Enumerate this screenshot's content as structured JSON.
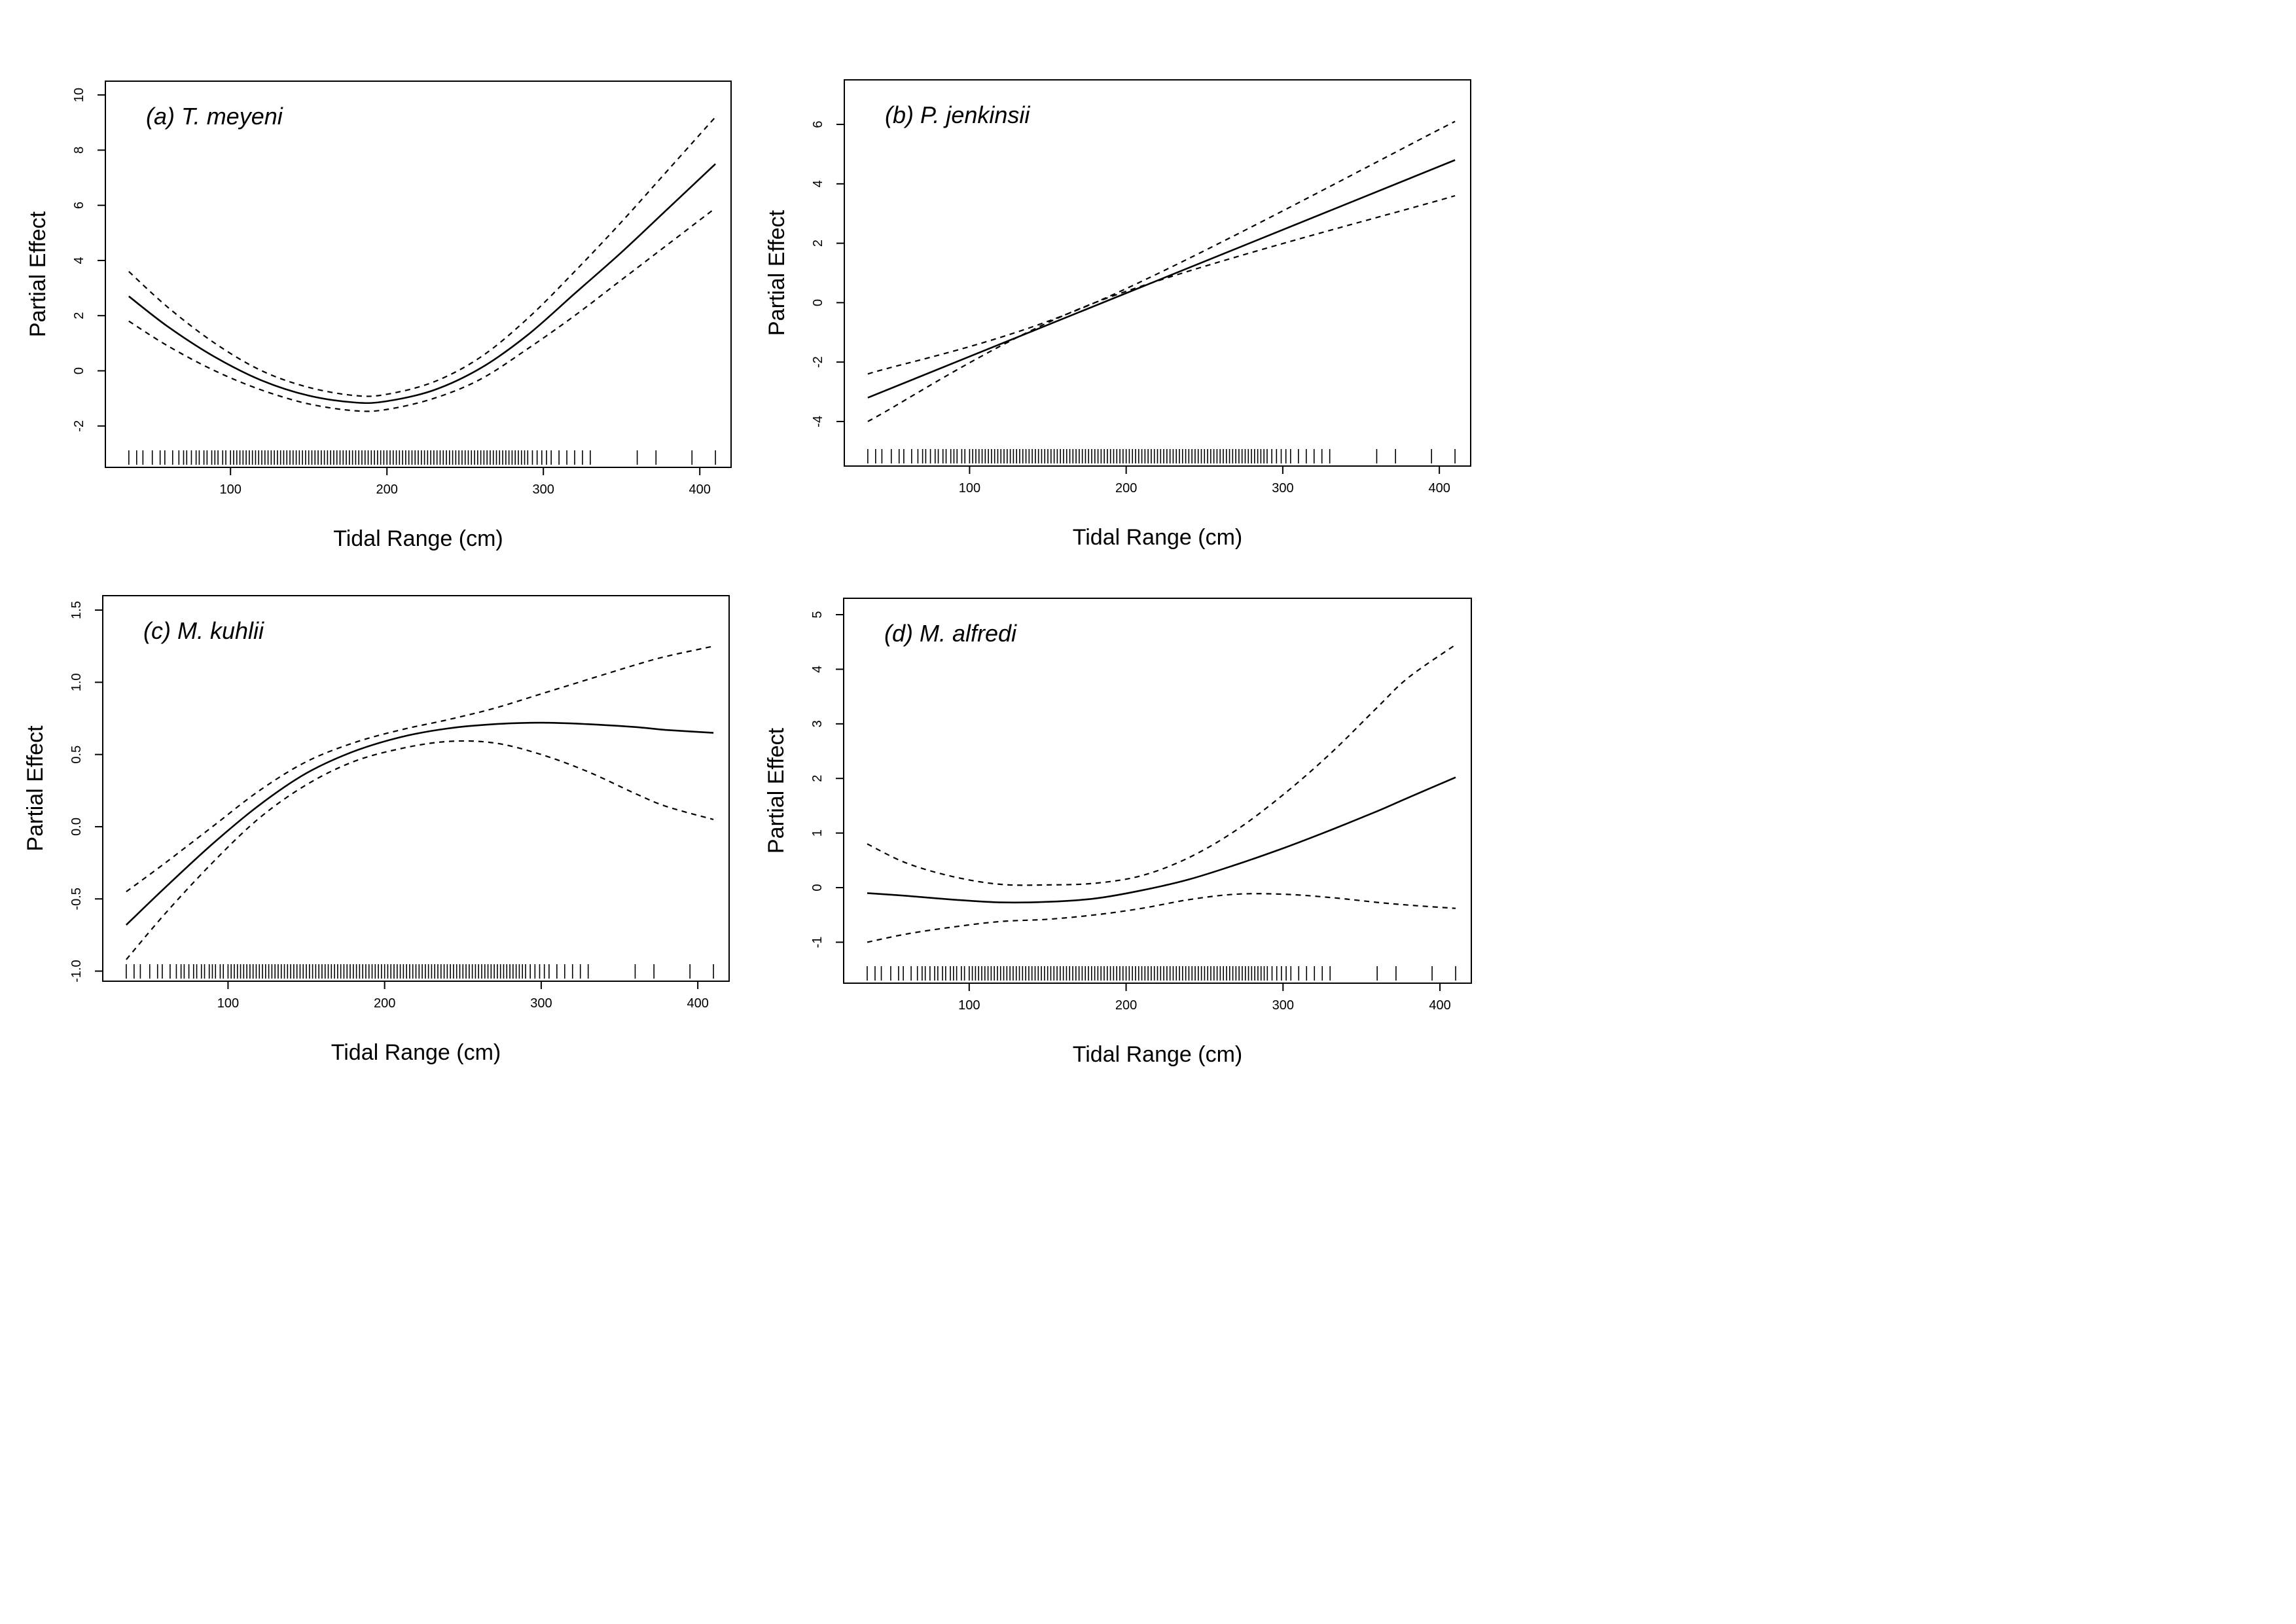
{
  "chart_data": [
    {
      "type": "line",
      "title": "(a) T. meyeni",
      "xlabel": "Tidal Range (cm)",
      "ylabel": "Partial Effect",
      "xlim": [
        20,
        420
      ],
      "ylim": [
        -3.5,
        10.5
      ],
      "xticks": [
        "100",
        "200",
        "300",
        "400"
      ],
      "yticks": [
        "-2",
        "0",
        "2",
        "4",
        "6",
        "8",
        "10"
      ],
      "grid": false,
      "series": [
        {
          "role": "fit",
          "style": "solid",
          "x": [
            35,
            60,
            90,
            120,
            150,
            180,
            200,
            230,
            260,
            290,
            320,
            350,
            380,
            410
          ],
          "y": [
            2.7,
            1.6,
            0.5,
            -0.35,
            -0.9,
            -1.15,
            -1.1,
            -0.7,
            0.1,
            1.3,
            2.8,
            4.3,
            5.9,
            7.5
          ]
        },
        {
          "role": "upper",
          "style": "dashed",
          "x": [
            35,
            60,
            90,
            120,
            150,
            180,
            200,
            230,
            260,
            290,
            320,
            350,
            380,
            410
          ],
          "y": [
            3.6,
            2.3,
            1.0,
            0.0,
            -0.6,
            -0.9,
            -0.85,
            -0.4,
            0.5,
            1.9,
            3.6,
            5.4,
            7.3,
            9.2
          ]
        },
        {
          "role": "lower",
          "style": "dashed",
          "x": [
            35,
            60,
            90,
            120,
            150,
            180,
            200,
            230,
            260,
            290,
            320,
            350,
            380,
            410
          ],
          "y": [
            1.8,
            0.9,
            0.0,
            -0.7,
            -1.2,
            -1.45,
            -1.4,
            -1.0,
            -0.3,
            0.8,
            2.0,
            3.3,
            4.6,
            5.9
          ]
        }
      ],
      "rug": [
        35,
        40,
        44,
        50,
        55,
        58,
        63,
        67,
        70,
        72,
        75,
        78,
        80,
        83,
        85,
        88,
        90,
        92,
        95,
        97,
        100,
        102,
        104,
        106,
        108,
        110,
        112,
        114,
        116,
        118,
        120,
        122,
        124,
        126,
        128,
        130,
        132,
        134,
        136,
        138,
        140,
        142,
        144,
        146,
        148,
        150,
        152,
        154,
        156,
        158,
        160,
        162,
        164,
        166,
        168,
        170,
        172,
        174,
        176,
        178,
        180,
        182,
        184,
        186,
        188,
        190,
        192,
        194,
        196,
        198,
        200,
        202,
        204,
        206,
        208,
        210,
        212,
        214,
        216,
        218,
        220,
        222,
        224,
        226,
        228,
        230,
        232,
        234,
        236,
        238,
        240,
        242,
        244,
        246,
        248,
        250,
        252,
        254,
        256,
        258,
        260,
        262,
        264,
        266,
        268,
        270,
        272,
        274,
        276,
        278,
        280,
        282,
        284,
        286,
        288,
        290,
        293,
        296,
        299,
        302,
        305,
        310,
        315,
        320,
        325,
        330,
        360,
        372,
        395,
        410
      ]
    },
    {
      "type": "line",
      "title": "(b) P. jenkinsii",
      "xlabel": "Tidal Range (cm)",
      "ylabel": "Partial Effect",
      "xlim": [
        20,
        420
      ],
      "ylim": [
        -5.5,
        7.5
      ],
      "xticks": [
        "100",
        "200",
        "300",
        "400"
      ],
      "yticks": [
        "-4",
        "-2",
        "0",
        "2",
        "4",
        "6"
      ],
      "grid": false,
      "series": [
        {
          "role": "fit",
          "style": "solid",
          "x": [
            35,
            410
          ],
          "y": [
            -3.2,
            4.8
          ]
        },
        {
          "role": "upper",
          "style": "dashed",
          "x": [
            35,
            180,
            410
          ],
          "y": [
            -2.4,
            0.0,
            6.1
          ]
        },
        {
          "role": "lower",
          "style": "dashed",
          "x": [
            35,
            180,
            410
          ],
          "y": [
            -4.0,
            0.0,
            3.6
          ]
        }
      ],
      "rug": [
        35,
        40,
        44,
        50,
        55,
        58,
        63,
        67,
        70,
        72,
        75,
        78,
        80,
        83,
        85,
        88,
        90,
        92,
        95,
        97,
        100,
        102,
        104,
        106,
        108,
        110,
        112,
        114,
        116,
        118,
        120,
        122,
        124,
        126,
        128,
        130,
        132,
        134,
        136,
        138,
        140,
        142,
        144,
        146,
        148,
        150,
        152,
        154,
        156,
        158,
        160,
        162,
        164,
        166,
        168,
        170,
        172,
        174,
        176,
        178,
        180,
        182,
        184,
        186,
        188,
        190,
        192,
        194,
        196,
        198,
        200,
        202,
        204,
        206,
        208,
        210,
        212,
        214,
        216,
        218,
        220,
        222,
        224,
        226,
        228,
        230,
        232,
        234,
        236,
        238,
        240,
        242,
        244,
        246,
        248,
        250,
        252,
        254,
        256,
        258,
        260,
        262,
        264,
        266,
        268,
        270,
        272,
        274,
        276,
        278,
        280,
        282,
        284,
        286,
        288,
        290,
        293,
        296,
        299,
        302,
        305,
        310,
        315,
        320,
        325,
        330,
        360,
        372,
        395,
        410
      ]
    },
    {
      "type": "line",
      "title": "(c) M. kuhlii",
      "xlabel": "Tidal Range (cm)",
      "ylabel": "Partial Effect",
      "xlim": [
        20,
        420
      ],
      "ylim": [
        -1.07,
        1.6
      ],
      "xticks": [
        "100",
        "200",
        "300",
        "400"
      ],
      "yticks": [
        "-1.0",
        "-0.5",
        "0.0",
        "0.5",
        "1.0",
        "1.5"
      ],
      "grid": false,
      "series": [
        {
          "role": "fit",
          "style": "solid",
          "x": [
            35,
            60,
            90,
            120,
            150,
            180,
            210,
            240,
            270,
            300,
            330,
            360,
            380,
            410
          ],
          "y": [
            -0.68,
            -0.42,
            -0.12,
            0.15,
            0.37,
            0.52,
            0.62,
            0.68,
            0.71,
            0.72,
            0.71,
            0.69,
            0.67,
            0.65
          ]
        },
        {
          "role": "upper",
          "style": "dashed",
          "x": [
            35,
            60,
            90,
            120,
            150,
            180,
            210,
            240,
            270,
            300,
            330,
            360,
            380,
            410
          ],
          "y": [
            -0.45,
            -0.25,
            0.0,
            0.25,
            0.45,
            0.58,
            0.67,
            0.74,
            0.82,
            0.92,
            1.02,
            1.12,
            1.18,
            1.25
          ]
        },
        {
          "role": "lower",
          "style": "dashed",
          "x": [
            35,
            60,
            90,
            120,
            150,
            180,
            210,
            240,
            270,
            300,
            330,
            360,
            380,
            410
          ],
          "y": [
            -0.92,
            -0.6,
            -0.25,
            0.06,
            0.29,
            0.45,
            0.54,
            0.59,
            0.58,
            0.5,
            0.38,
            0.23,
            0.14,
            0.05
          ]
        }
      ],
      "rug": [
        35,
        40,
        44,
        50,
        55,
        58,
        63,
        67,
        70,
        72,
        75,
        78,
        80,
        83,
        85,
        88,
        90,
        92,
        95,
        97,
        100,
        102,
        104,
        106,
        108,
        110,
        112,
        114,
        116,
        118,
        120,
        122,
        124,
        126,
        128,
        130,
        132,
        134,
        136,
        138,
        140,
        142,
        144,
        146,
        148,
        150,
        152,
        154,
        156,
        158,
        160,
        162,
        164,
        166,
        168,
        170,
        172,
        174,
        176,
        178,
        180,
        182,
        184,
        186,
        188,
        190,
        192,
        194,
        196,
        198,
        200,
        202,
        204,
        206,
        208,
        210,
        212,
        214,
        216,
        218,
        220,
        222,
        224,
        226,
        228,
        230,
        232,
        234,
        236,
        238,
        240,
        242,
        244,
        246,
        248,
        250,
        252,
        254,
        256,
        258,
        260,
        262,
        264,
        266,
        268,
        270,
        272,
        274,
        276,
        278,
        280,
        282,
        284,
        286,
        288,
        290,
        293,
        296,
        299,
        302,
        305,
        310,
        315,
        320,
        325,
        330,
        360,
        372,
        395,
        410
      ]
    },
    {
      "type": "line",
      "title": "(d) M. alfredi",
      "xlabel": "Tidal Range (cm)",
      "ylabel": "Partial Effect",
      "xlim": [
        20,
        420
      ],
      "ylim": [
        -1.75,
        5.3
      ],
      "xticks": [
        "100",
        "200",
        "300",
        "400"
      ],
      "yticks": [
        "-1",
        "0",
        "1",
        "2",
        "3",
        "4",
        "5"
      ],
      "grid": false,
      "series": [
        {
          "role": "fit",
          "style": "solid",
          "x": [
            35,
            60,
            90,
            120,
            150,
            180,
            210,
            240,
            270,
            300,
            330,
            360,
            380,
            410
          ],
          "y": [
            -0.1,
            -0.15,
            -0.22,
            -0.27,
            -0.26,
            -0.2,
            -0.05,
            0.15,
            0.42,
            0.72,
            1.05,
            1.4,
            1.65,
            2.02
          ]
        },
        {
          "role": "upper",
          "style": "dashed",
          "x": [
            35,
            60,
            90,
            120,
            150,
            180,
            210,
            240,
            270,
            300,
            330,
            360,
            380,
            410
          ],
          "y": [
            0.8,
            0.45,
            0.2,
            0.06,
            0.05,
            0.08,
            0.22,
            0.55,
            1.05,
            1.7,
            2.45,
            3.3,
            3.85,
            4.45
          ]
        },
        {
          "role": "lower",
          "style": "dashed",
          "x": [
            35,
            60,
            90,
            120,
            150,
            180,
            210,
            240,
            270,
            300,
            330,
            360,
            380,
            410
          ],
          "y": [
            -1.0,
            -0.85,
            -0.72,
            -0.62,
            -0.58,
            -0.5,
            -0.38,
            -0.22,
            -0.12,
            -0.12,
            -0.18,
            -0.27,
            -0.32,
            -0.38
          ]
        }
      ],
      "rug": [
        35,
        40,
        44,
        50,
        55,
        58,
        63,
        67,
        70,
        72,
        75,
        78,
        80,
        83,
        85,
        88,
        90,
        92,
        95,
        97,
        100,
        102,
        104,
        106,
        108,
        110,
        112,
        114,
        116,
        118,
        120,
        122,
        124,
        126,
        128,
        130,
        132,
        134,
        136,
        138,
        140,
        142,
        144,
        146,
        148,
        150,
        152,
        154,
        156,
        158,
        160,
        162,
        164,
        166,
        168,
        170,
        172,
        174,
        176,
        178,
        180,
        182,
        184,
        186,
        188,
        190,
        192,
        194,
        196,
        198,
        200,
        202,
        204,
        206,
        208,
        210,
        212,
        214,
        216,
        218,
        220,
        222,
        224,
        226,
        228,
        230,
        232,
        234,
        236,
        238,
        240,
        242,
        244,
        246,
        248,
        250,
        252,
        254,
        256,
        258,
        260,
        262,
        264,
        266,
        268,
        270,
        272,
        274,
        276,
        278,
        280,
        282,
        284,
        286,
        288,
        290,
        293,
        296,
        299,
        302,
        305,
        310,
        315,
        320,
        325,
        330,
        360,
        372,
        395,
        410
      ]
    }
  ]
}
